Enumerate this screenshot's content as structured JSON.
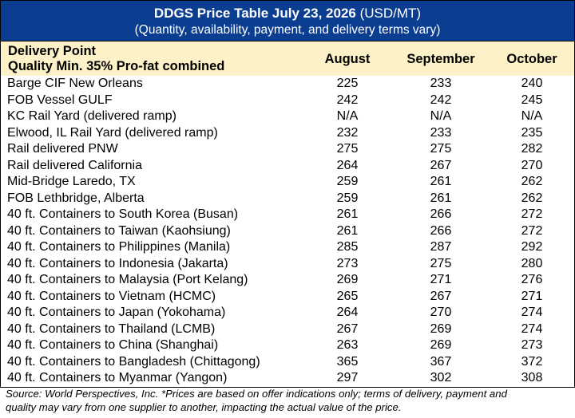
{
  "title": {
    "bold": "DDGS Price Table July 23, 2026",
    "normal": " (USD/MT)",
    "subtitle": "(Quantity, availability, payment, and delivery terms vary)"
  },
  "header": {
    "delivery_point": "Delivery Point",
    "quality": "Quality Min. 35% Pro-fat combined",
    "columns": [
      "August",
      "September",
      "October"
    ]
  },
  "rows": [
    {
      "name": "Barge CIF New Orleans",
      "aug": "225",
      "sep": "233",
      "oct": "240"
    },
    {
      "name": "FOB Vessel GULF",
      "aug": "242",
      "sep": "242",
      "oct": "245"
    },
    {
      "name": "KC Rail Yard (delivered ramp)",
      "aug": "N/A",
      "sep": "N/A",
      "oct": "N/A"
    },
    {
      "name": "Elwood, IL Rail Yard (delivered ramp)",
      "aug": "232",
      "sep": "233",
      "oct": "235"
    },
    {
      "name": "Rail delivered PNW",
      "aug": "275",
      "sep": "275",
      "oct": "282"
    },
    {
      "name": "Rail delivered California",
      "aug": "264",
      "sep": "267",
      "oct": "270"
    },
    {
      "name": "Mid-Bridge Laredo, TX",
      "aug": "259",
      "sep": "261",
      "oct": "262"
    },
    {
      "name": "FOB Lethbridge, Alberta",
      "aug": "259",
      "sep": "261",
      "oct": "262"
    },
    {
      "name": "40 ft. Containers to South Korea (Busan)",
      "aug": "261",
      "sep": "266",
      "oct": "272"
    },
    {
      "name": "40 ft. Containers to Taiwan (Kaohsiung)",
      "aug": "261",
      "sep": "266",
      "oct": "272"
    },
    {
      "name": "40 ft. Containers to Philippines (Manila)",
      "aug": "285",
      "sep": "287",
      "oct": "292"
    },
    {
      "name": "40 ft. Containers to Indonesia (Jakarta)",
      "aug": "273",
      "sep": "275",
      "oct": "280"
    },
    {
      "name": "40 ft. Containers to Malaysia (Port Kelang)",
      "aug": "269",
      "sep": "271",
      "oct": "276"
    },
    {
      "name": "40 ft. Containers to Vietnam (HCMC)",
      "aug": "265",
      "sep": "267",
      "oct": "271"
    },
    {
      "name": "40 ft. Containers to Japan (Yokohama)",
      "aug": "264",
      "sep": "270",
      "oct": "274"
    },
    {
      "name": "40 ft. Containers to Thailand (LCMB)",
      "aug": "267",
      "sep": "269",
      "oct": "274"
    },
    {
      "name": "40 ft. Containers to China (Shanghai)",
      "aug": "263",
      "sep": "269",
      "oct": "273"
    },
    {
      "name": "40 ft. Containers to Bangladesh (Chittagong)",
      "aug": "365",
      "sep": "367",
      "oct": "372"
    },
    {
      "name": "40 ft. Containers to Myanmar (Yangon)",
      "aug": "297",
      "sep": "302",
      "oct": "308"
    }
  ],
  "footer": {
    "line1": "Source: World Perspectives, Inc. *Prices are based on offer indications only; terms of delivery, payment and",
    "line2": "quality may vary from one supplier to another, impacting the actual value of the price."
  },
  "colors": {
    "title_bg": "#0b3d91",
    "header_bg": "#fdf1c7"
  }
}
